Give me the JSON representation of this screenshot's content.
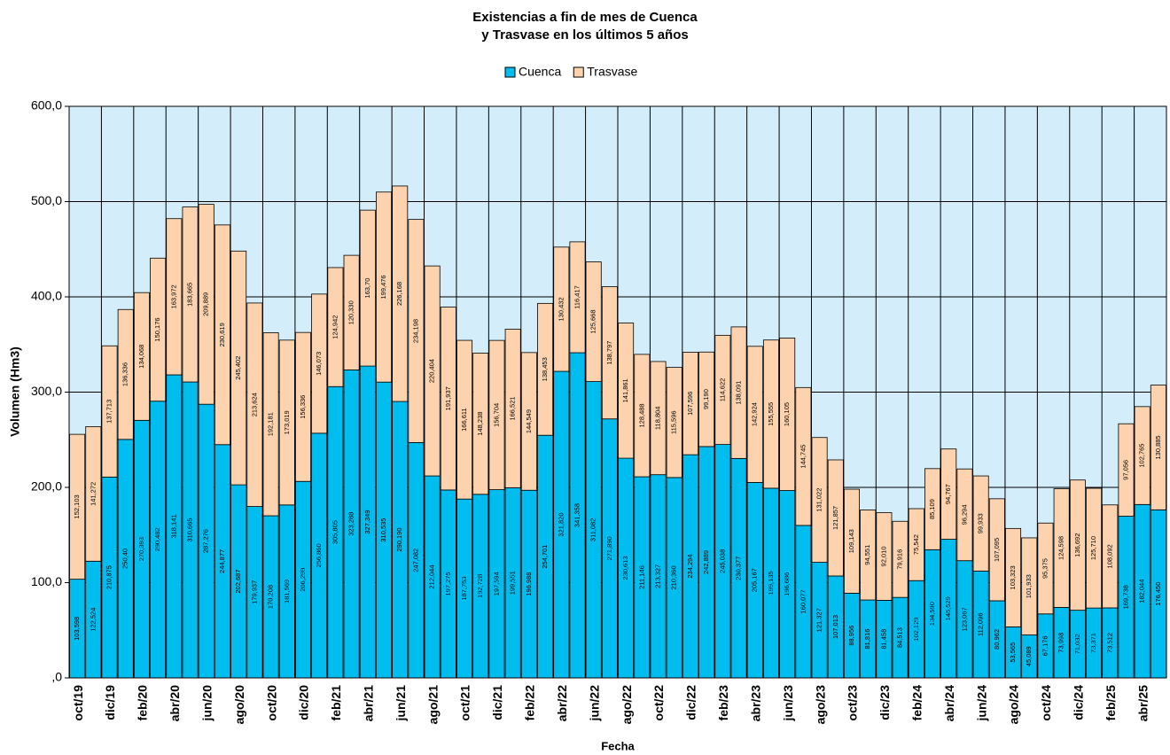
{
  "chart_data": {
    "type": "bar",
    "stacked": true,
    "title": [
      "Existencias a fin de mes de Cuenca",
      "y Trasvase en los últimos 5 años"
    ],
    "x_label": "Fecha",
    "y_label": "Volumen (Hm3)",
    "categories": [
      "oct/19",
      null,
      "dic/19",
      null,
      "feb/20",
      null,
      "abr/20",
      null,
      "jun/20",
      null,
      "ago/20",
      null,
      "oct/20",
      null,
      "dic/20",
      null,
      "feb/21",
      null,
      "abr/21",
      null,
      "jun/21",
      null,
      "ago/21",
      null,
      "oct/21",
      null,
      "dic/21",
      null,
      "feb/22",
      null,
      "abr/22",
      null,
      "jun/22",
      null,
      "ago/22",
      null,
      "oct/22",
      null,
      "dic/22",
      null,
      "feb/23",
      null,
      "abr/23",
      null,
      "jun/23",
      null,
      "ago/23",
      null,
      "oct/23",
      null,
      "dic/23",
      null,
      "feb/24",
      null,
      "abr/24",
      null,
      "jun/24",
      null,
      "ago/24",
      null,
      "oct/24",
      null,
      "dic/24",
      null,
      "feb/25",
      null,
      "abr/25",
      null
    ],
    "series": [
      {
        "name": "Cuenca",
        "color": "#00bdf0",
        "values": [
          103.598,
          122.524,
          210.875,
          250.4,
          270.393,
          290.482,
          318.141,
          310.665,
          287.276,
          244.877,
          202.687,
          179.937,
          170.208,
          181.569,
          206.299,
          256.86,
          305.805,
          323.288,
          327.349,
          310.535,
          290.19,
          247.082,
          212.044,
          197.275,
          187.753,
          192.728,
          197.594,
          199.551,
          196.988,
          254.701,
          321.82,
          341.358,
          311.082,
          271.89,
          230.613,
          211.146,
          213.327,
          210.36,
          234.294,
          242.889,
          245.038,
          230.377,
          205.167,
          199.135,
          196.686,
          160.077,
          121.327,
          107.013,
          88.956,
          81.816,
          81.458,
          84.513,
          102.129,
          134.59,
          145.529,
          123.067,
          112.096,
          80.962,
          53.565,
          45.089,
          67.176,
          73.998,
          71.032,
          73.371,
          73.512,
          169.738,
          182.044,
          176.45
        ],
        "value_labels": [
          "103,598",
          "122,524",
          "210,875",
          "250,40",
          "270,393",
          "290,482",
          "318,141",
          "310,665",
          "287,276",
          "244,877",
          "202,687",
          "179,937",
          "170,208",
          "181,569",
          "206,299",
          "256,860",
          "305,805",
          "323,288",
          "327,349",
          "310,535",
          "290,190",
          "247,082",
          "212,044",
          "197,275",
          "187,753",
          "192,728",
          "197,594",
          "199,551",
          "196,988",
          "254,701",
          "321,820",
          "341,358",
          "311,082",
          "271,890",
          "230,613",
          "211,146",
          "213,327",
          "210,360",
          "234,294",
          "242,889",
          "245,038",
          "230,377",
          "205,167",
          "199,135",
          "196,686",
          "160,077",
          "121,327",
          "107,013",
          "88,956",
          "81,816",
          "81,458",
          "84,513",
          "102,129",
          "134,590",
          "145,529",
          "123,067",
          "112,096",
          "80,962",
          "53,565",
          "45,089",
          "67,176",
          "73,998",
          "71,032",
          "73,371",
          "73,512",
          "169,738",
          "182,044",
          "176,450"
        ]
      },
      {
        "name": "Trasvase",
        "color": "#fcd3ae",
        "values": [
          152.103,
          141.272,
          137.713,
          136.336,
          134.068,
          150.176,
          163.972,
          183.665,
          209.889,
          230.619,
          245.402,
          213.624,
          192.181,
          173.019,
          156.336,
          146.073,
          124.942,
          120.33,
          163.7,
          199.476,
          226.168,
          234.198,
          220.404,
          191.937,
          166.611,
          148.238,
          156.704,
          166.521,
          144.549,
          138.453,
          130.432,
          116.417,
          125.668,
          138.797,
          141.861,
          128.488,
          118.804,
          115.596,
          107.596,
          99.19,
          114.622,
          138.091,
          142.924,
          155.555,
          160.105,
          144.745,
          131.022,
          121.857,
          109.143,
          94.551,
          92.01,
          79.916,
          75.542,
          85.109,
          94.767,
          96.294,
          99.933,
          107.095,
          103.323,
          101.933,
          95.375,
          124.598,
          136.692,
          125.71,
          108.092,
          97.056,
          102.765,
          130.885
        ],
        "value_labels": [
          "152,103",
          "141,272",
          "137,713",
          "136,336",
          "134,068",
          "150,176",
          "163,972",
          "183,665",
          "209,889",
          "230,619",
          "245,402",
          "213,624",
          "192,181",
          "173,019",
          "156,336",
          "146,073",
          "124,942",
          "120,330",
          "163,70",
          "199,476",
          "226,168",
          "234,198",
          "220,404",
          "191,937",
          "166,611",
          "148,238",
          "156,704",
          "166,521",
          "144,549",
          "138,453",
          "130,432",
          "116,417",
          "125,668",
          "138,797",
          "141,861",
          "128,488",
          "118,804",
          "115,596",
          "107,596",
          "99,190",
          "114,622",
          "138,091",
          "142,924",
          "155,555",
          "160,105",
          "144,745",
          "131,022",
          "121,857",
          "109,143",
          "94,551",
          "92,010",
          "79,916",
          "75,542",
          "85,109",
          "94,767",
          "96,294",
          "99,933",
          "107,095",
          "103,323",
          "101,933",
          "95,375",
          "124,598",
          "136,692",
          "125,710",
          "108,092",
          "97,056",
          "102,765",
          "130,885"
        ]
      }
    ],
    "ylim": [
      0,
      600
    ],
    "yticks": [
      {
        "value": 0,
        "label": ",0"
      },
      {
        "value": 100,
        "label": "100,0"
      },
      {
        "value": 200,
        "label": "200,0"
      },
      {
        "value": 300,
        "label": "300,0"
      },
      {
        "value": 400,
        "label": "400,0"
      },
      {
        "value": 500,
        "label": "500,0"
      },
      {
        "value": 600,
        "label": "600,0"
      }
    ],
    "grid": true,
    "legend": "top",
    "background": "#d3edfb"
  }
}
